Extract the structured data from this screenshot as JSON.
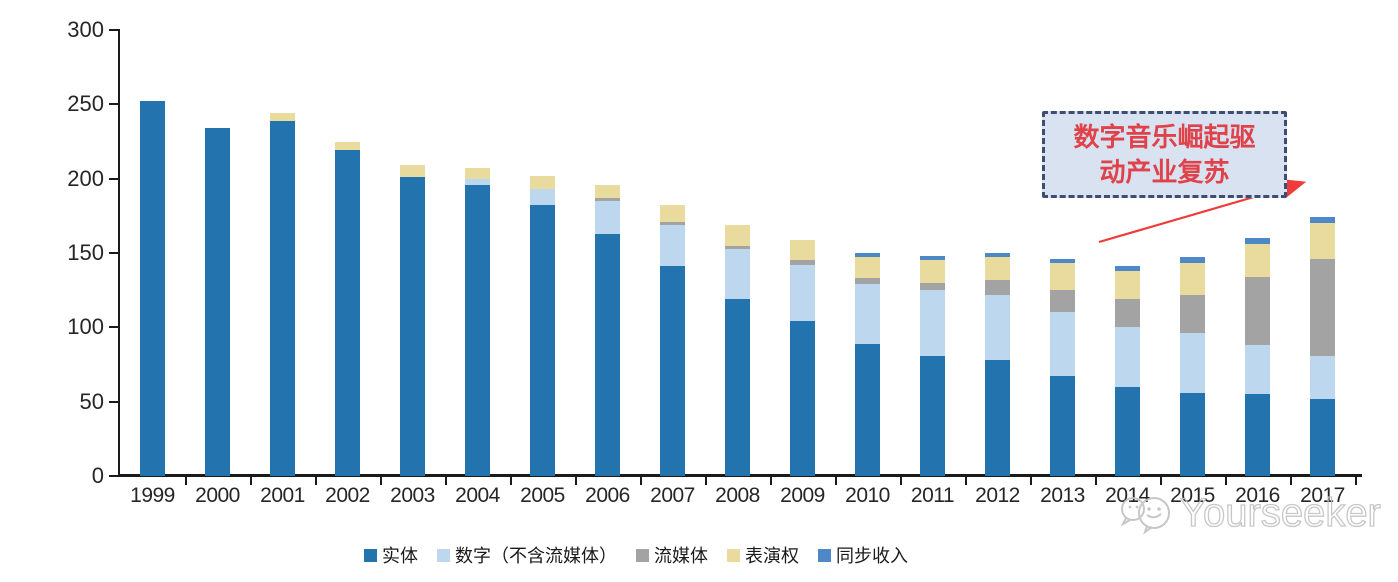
{
  "chart_data": {
    "type": "bar",
    "stacked": true,
    "title": "",
    "xlabel": "",
    "ylabel": "",
    "categories": [
      "1999",
      "2000",
      "2001",
      "2002",
      "2003",
      "2004",
      "2005",
      "2006",
      "2007",
      "2008",
      "2009",
      "2010",
      "2011",
      "2012",
      "2013",
      "2014",
      "2015",
      "2016",
      "2017"
    ],
    "series": [
      {
        "name": "实体",
        "color": "#2273ae",
        "values": [
          252,
          234,
          239,
          219,
          201,
          196,
          182,
          163,
          141,
          119,
          104,
          89,
          81,
          78,
          67,
          60,
          56,
          55,
          52
        ]
      },
      {
        "name": "数字（不含流媒体）",
        "color": "#bdd7ee",
        "values": [
          0,
          0,
          0,
          0,
          0,
          4,
          11,
          22,
          28,
          34,
          38,
          40,
          44,
          44,
          43,
          40,
          40,
          33,
          29
        ]
      },
      {
        "name": "流媒体",
        "color": "#a3a3a3",
        "values": [
          0,
          0,
          0,
          0,
          0,
          0,
          0,
          2,
          2,
          2,
          3,
          4,
          5,
          10,
          15,
          19,
          26,
          46,
          65
        ]
      },
      {
        "name": "表演权",
        "color": "#e9db9d",
        "values": [
          0,
          0,
          5,
          6,
          8,
          7,
          9,
          9,
          11,
          14,
          14,
          14,
          15,
          15,
          18,
          19,
          21,
          22,
          24
        ]
      },
      {
        "name": "同步收入",
        "color": "#4e88c7",
        "values": [
          0,
          0,
          0,
          0,
          0,
          0,
          0,
          0,
          0,
          0,
          0,
          3,
          3,
          3,
          3,
          3,
          4,
          4,
          4
        ]
      }
    ],
    "ylim": [
      0,
      300
    ],
    "yticks": [
      0,
      50,
      100,
      150,
      200,
      250,
      300
    ],
    "grid": false,
    "legend_position": "bottom"
  },
  "annotation": {
    "line1": "数字音乐崛起驱",
    "line2": "动产业复苏",
    "text_color": "#e0424a",
    "box_fill": "#d9e2f1",
    "box_border": "#3e4d72",
    "arrow_color": "#f03b3b"
  },
  "watermark": {
    "text": "Yourseeker"
  }
}
